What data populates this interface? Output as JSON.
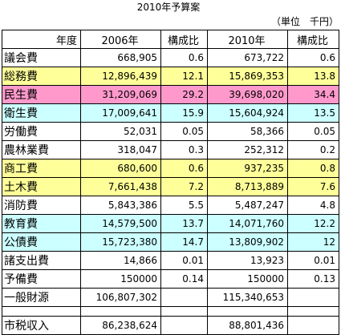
{
  "title": "2010年予算案",
  "unit": "（単位　千円）",
  "headers": {
    "category": "年度",
    "y2006": "2006年",
    "ratio2006": "構成比",
    "y2010": "2010年",
    "ratio2010": "構成比"
  },
  "colors": {
    "yellow": "#ffff99",
    "pink": "#ff99cc",
    "cyan": "#ccffff",
    "white": "#ffffff"
  },
  "rows": [
    {
      "name": "議会費",
      "v2006": "668,905",
      "r2006": "0.6",
      "v2010": "673,722",
      "r2010": "0.6",
      "color": "white"
    },
    {
      "name": "総務費",
      "v2006": "12,896,439",
      "r2006": "12.1",
      "v2010": "15,869,353",
      "r2010": "13.8",
      "color": "yellow"
    },
    {
      "name": "民生費",
      "v2006": "31,209,069",
      "r2006": "29.2",
      "v2010": "39,698,020",
      "r2010": "34.4",
      "color": "pink"
    },
    {
      "name": "衛生費",
      "v2006": "17,009,641",
      "r2006": "15.9",
      "v2010": "15,604,924",
      "r2010": "13.5",
      "color": "cyan"
    },
    {
      "name": "労働費",
      "v2006": "52,031",
      "r2006": "0.05",
      "v2010": "58,366",
      "r2010": "0.05",
      "color": "white"
    },
    {
      "name": "農林業費",
      "v2006": "318,047",
      "r2006": "0.3",
      "v2010": "252,312",
      "r2010": "0.2",
      "color": "white"
    },
    {
      "name": "商工費",
      "v2006": "680,600",
      "r2006": "0.6",
      "v2010": "937,235",
      "r2010": "0.8",
      "color": "yellow"
    },
    {
      "name": "土木費",
      "v2006": "7,661,438",
      "r2006": "7.2",
      "v2010": "8,713,889",
      "r2010": "7.6",
      "color": "yellow"
    },
    {
      "name": "消防費",
      "v2006": "5,843,386",
      "r2006": "5.5",
      "v2010": "5,487,247",
      "r2010": "4.8",
      "color": "white"
    },
    {
      "name": "教育費",
      "v2006": "14,579,500",
      "r2006": "13.7",
      "v2010": "14,071,760",
      "r2010": "12.2",
      "color": "cyan"
    },
    {
      "name": "公債費",
      "v2006": "15,723,380",
      "r2006": "14.7",
      "v2010": "13,809,902",
      "r2010": "12",
      "color": "cyan"
    },
    {
      "name": "諸支出費",
      "v2006": "14,866",
      "r2006": "0.01",
      "v2010": "13,923",
      "r2010": "0.01",
      "color": "white"
    },
    {
      "name": "予備費",
      "v2006": "150000",
      "r2006": "0.14",
      "v2010": "150000",
      "r2010": "0.13",
      "color": "white"
    },
    {
      "name": "一般財源",
      "v2006": "106,807,302",
      "r2006": "",
      "v2010": "115,340,653",
      "r2010": "",
      "color": "white"
    }
  ],
  "revenue": {
    "name": "市税収入",
    "v2006": "86,238,624",
    "r2006": "",
    "v2010": "88,801,436",
    "r2010": ""
  }
}
